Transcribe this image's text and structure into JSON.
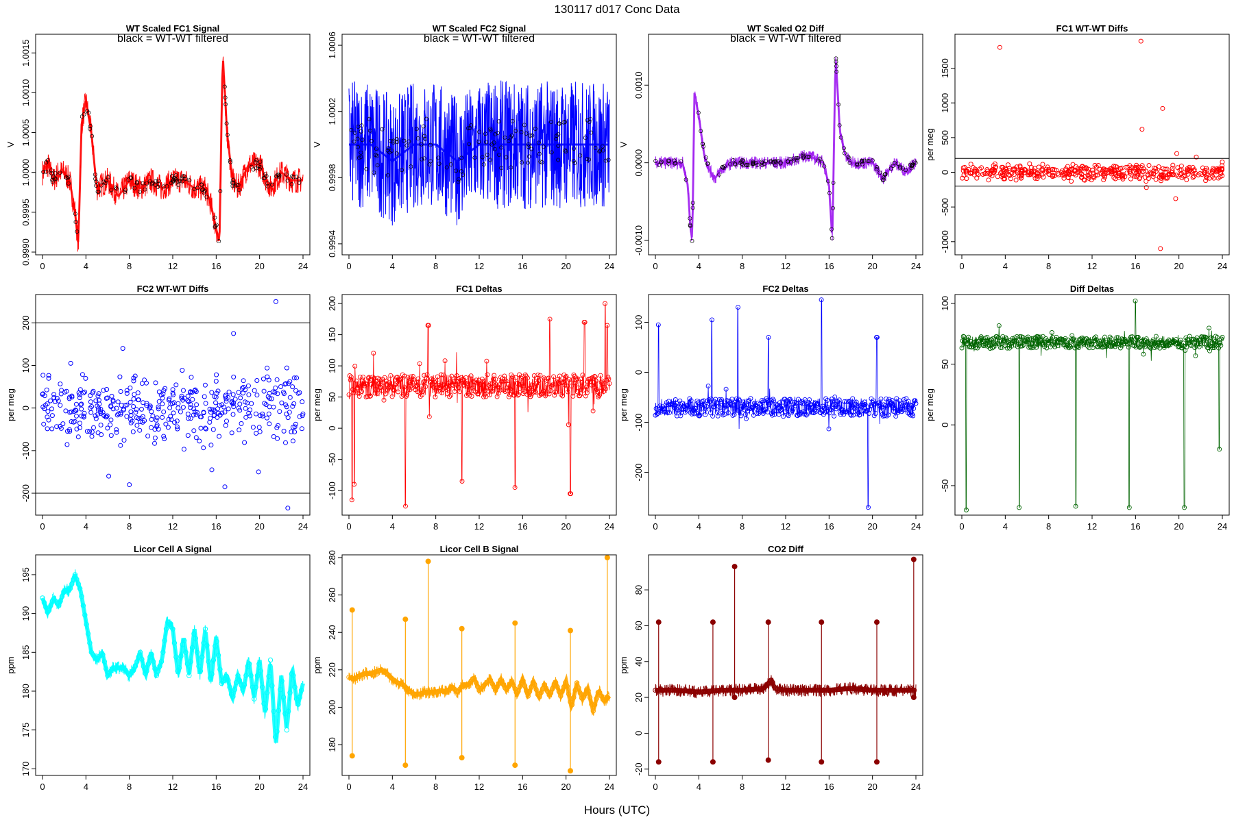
{
  "figure": {
    "title": "130117   d017   Conc Data",
    "xlabel": "Hours (UTC)",
    "x_ticks": [
      0,
      4,
      8,
      12,
      16,
      20,
      24
    ]
  },
  "colors": {
    "frame": "#000000",
    "background": "#ffffff",
    "red": "#ff0000",
    "blue": "#0000ff",
    "purple": "#a020f0",
    "green": "#006400",
    "cyan": "#00ffff",
    "orange": "#ffa500",
    "darkred": "#8b0000",
    "filtered": "#000000"
  },
  "chart_data": [
    {
      "type": "line",
      "title": "WT Scaled FC1 Signal",
      "annotation": "black = WT-WT filtered",
      "ylabel": "V",
      "xlim": [
        0,
        24
      ],
      "ylim": [
        0.999,
        1.0017
      ],
      "y_ticks": [
        "0.9990",
        "0.9995",
        "1.0000",
        "1.0005",
        "1.0010",
        "1.0015"
      ],
      "color": "red",
      "style": "band",
      "overlay_color": "filtered",
      "series": [
        {
          "x": [
            0,
            0.5,
            1,
            1.5,
            2,
            2.5,
            3,
            3.3,
            3.6,
            4,
            4.5,
            5,
            6,
            7,
            8,
            9,
            10,
            11,
            12,
            13,
            14,
            15,
            15.5,
            16,
            16.3,
            16.6,
            17,
            17.5,
            18,
            19,
            20,
            21,
            22,
            23,
            24
          ],
          "y": [
            1.0,
            1.0001,
            0.9999,
            1.0,
            1.0,
            0.9999,
            0.9995,
            0.9991,
            1.0006,
            1.0009,
            1.0005,
            0.9998,
            0.9999,
            0.9997,
            0.9999,
            0.9998,
            0.9999,
            0.9998,
            0.9999,
            0.9999,
            0.9998,
            0.9998,
            0.9996,
            0.9993,
            0.9991,
            1.0015,
            1.0005,
            0.9999,
            0.9998,
            1.0001,
            1.0001,
            0.9998,
            1.0,
            0.9999,
            0.9999
          ]
        }
      ]
    },
    {
      "type": "line",
      "title": "WT Scaled FC2 Signal",
      "annotation": "black = WT-WT filtered",
      "ylabel": "V",
      "xlim": [
        0,
        24
      ],
      "ylim": [
        0.99935,
        1.00065
      ],
      "y_ticks": [
        "0.9994",
        "0.9998",
        "1.0002",
        "1.0006"
      ],
      "color": "blue",
      "style": "band",
      "overlay_color": "filtered",
      "series": [
        {
          "x": [
            0,
            2,
            4,
            6,
            8,
            10,
            12,
            14,
            16,
            18,
            20,
            22,
            24
          ],
          "y": [
            1.0,
            1.0,
            0.9999,
            1.0,
            1.0,
            0.9999,
            1.0,
            1.0,
            1.0,
            1.0,
            1.0,
            1.0,
            1.0
          ]
        }
      ]
    },
    {
      "type": "line",
      "title": "WT Scaled O2 Diff",
      "annotation": "black = WT-WT filtered",
      "ylabel": "V",
      "xlim": [
        0,
        24
      ],
      "ylim": [
        -0.00115,
        0.00162
      ],
      "y_ticks": [
        "-0.0010",
        "0.0000",
        "0.0010"
      ],
      "color": "purple",
      "style": "band",
      "overlay_color": "filtered",
      "series": [
        {
          "x": [
            0,
            0.5,
            1,
            1.5,
            2,
            2.5,
            3,
            3.2,
            3.4,
            3.6,
            4,
            4.5,
            5,
            5.5,
            6,
            7,
            8,
            10,
            12,
            14,
            15.5,
            16,
            16.3,
            16.6,
            17,
            17.5,
            18,
            19,
            20,
            21,
            22,
            23,
            24
          ],
          "y": [
            0.0,
            0.0,
            0.0,
            0.0,
            0.0,
            0.0,
            -0.0003,
            -0.0008,
            -0.001,
            0.0009,
            0.0006,
            0.0001,
            -0.0001,
            -0.0002,
            -0.0001,
            0.0,
            0.0,
            0.0,
            0.0,
            0.0001,
            0.0,
            -0.0003,
            -0.001,
            0.0014,
            0.0004,
            0.0001,
            0.0,
            0.0,
            0.0,
            -0.0002,
            0.0,
            -0.0001,
            0.0
          ]
        }
      ]
    },
    {
      "type": "scatter",
      "title": "FC1 WT-WT Diffs",
      "ylabel": "per meg",
      "xlim": [
        0,
        24
      ],
      "ylim": [
        -1150,
        1950
      ],
      "y_ticks": [
        "-1000",
        "-500",
        "0",
        "500",
        "1000",
        "1500"
      ],
      "hlines": [
        200,
        -200
      ],
      "color": "red",
      "style": "scatter",
      "series": [
        {
          "x": [
            3.5,
            16.5,
            16.6,
            18.3,
            18.5,
            19.8,
            19.7,
            21.6,
            17.0,
            14.0
          ],
          "y": [
            1800,
            1890,
            620,
            -1100,
            920,
            270,
            -380,
            220,
            -220,
            90
          ]
        }
      ]
    },
    {
      "type": "scatter",
      "title": "FC2 WT-WT Diffs",
      "ylabel": "per meg",
      "xlim": [
        0,
        24
      ],
      "ylim": [
        -245,
        260
      ],
      "y_ticks": [
        "-200",
        "-100",
        "0",
        "100",
        "200"
      ],
      "hlines": [
        200,
        -200
      ],
      "color": "blue",
      "style": "scatter",
      "series": [
        {
          "x": [
            21.5,
            22.6,
            17.6,
            19.9,
            7.4,
            2.6,
            6.1,
            8.0,
            16.8,
            15.6
          ],
          "y": [
            250,
            -235,
            175,
            -150,
            140,
            105,
            -160,
            -180,
            -185,
            -145
          ]
        }
      ]
    },
    {
      "type": "line",
      "title": "FC1 Deltas",
      "ylabel": "per meg",
      "xlim": [
        0,
        24
      ],
      "ylim": [
        -135,
        210
      ],
      "y_ticks": [
        "-100",
        "-50",
        "0",
        "50",
        "100",
        "150",
        "200"
      ],
      "color": "red",
      "style": "linepoints",
      "series": [
        {
          "x": [
            0.3,
            0.5,
            5.2,
            10.4,
            15.3,
            20.4,
            23.6,
            23.8,
            7.3,
            18.5,
            21.7
          ],
          "y": [
            -115,
            -90,
            -125,
            -85,
            -95,
            -105,
            200,
            165,
            165,
            175,
            170
          ]
        }
      ]
    },
    {
      "type": "line",
      "title": "FC2 Deltas",
      "ylabel": "per meg",
      "xlim": [
        0,
        24
      ],
      "ylim": [
        -280,
        150
      ],
      "y_ticks": [
        "-200",
        "-100",
        "0",
        "100"
      ],
      "color": "blue",
      "style": "linepoints",
      "series": [
        {
          "x": [
            0.3,
            5.2,
            7.6,
            10.4,
            15.3,
            19.6,
            20.4
          ],
          "y": [
            95,
            105,
            130,
            70,
            145,
            -270,
            70
          ]
        }
      ]
    },
    {
      "type": "line",
      "title": "Diff Deltas",
      "ylabel": "per meg",
      "xlim": [
        0,
        24
      ],
      "ylim": [
        -72,
        105
      ],
      "y_ticks": [
        "-50",
        "0",
        "50",
        "100"
      ],
      "color": "green",
      "style": "linepoints",
      "series": [
        {
          "x": [
            0.4,
            5.3,
            10.5,
            15.4,
            20.5,
            16.0,
            23.7
          ],
          "y": [
            -70,
            -68,
            -67,
            -68,
            -68,
            102,
            -20
          ]
        }
      ]
    },
    {
      "type": "line",
      "title": "Licor Cell A Signal",
      "ylabel": "ppm",
      "xlim": [
        0,
        24
      ],
      "ylim": [
        169.5,
        197.2
      ],
      "y_ticks": [
        "170",
        "175",
        "180",
        "185",
        "190",
        "195"
      ],
      "color": "cyan",
      "style": "band",
      "series": [
        {
          "x": [
            0,
            0.5,
            1,
            1.5,
            2,
            2.5,
            3,
            3.5,
            4,
            4.5,
            5,
            5.5,
            6,
            6.5,
            7,
            7.5,
            8,
            8.5,
            9,
            9.5,
            10,
            10.5,
            11,
            11.5,
            12,
            12.5,
            13,
            13.5,
            14,
            14.5,
            15,
            15.5,
            16,
            16.5,
            17,
            17.5,
            18,
            18.5,
            19,
            19.5,
            20,
            20.5,
            21,
            21.5,
            22,
            22.5,
            23,
            23.5,
            24
          ],
          "y": [
            192,
            190,
            192,
            191,
            193,
            193,
            195,
            193,
            189,
            185,
            184,
            185,
            182,
            183,
            183,
            183,
            182,
            183,
            185,
            182,
            185,
            182,
            184,
            189,
            188,
            182,
            187,
            182,
            188,
            182,
            188,
            181,
            187,
            181,
            182,
            179,
            182,
            180,
            184,
            179,
            184,
            177,
            184,
            173,
            182,
            175,
            183,
            178,
            181
          ]
        }
      ]
    },
    {
      "type": "line",
      "title": "Licor Cell B Signal",
      "ylabel": "ppm",
      "xlim": [
        0,
        24
      ],
      "ylim": [
        165,
        280
      ],
      "y_ticks": [
        "180",
        "200",
        "220",
        "240",
        "260",
        "280"
      ],
      "color": "orange",
      "style": "band",
      "series": [
        {
          "x": [
            0,
            0.5,
            1,
            1.5,
            2,
            2.5,
            3,
            3.5,
            4,
            4.5,
            5,
            5.5,
            6,
            6.5,
            7,
            7.5,
            8,
            8.5,
            9,
            9.5,
            10,
            10.5,
            11,
            11.5,
            12,
            12.5,
            13,
            13.5,
            14,
            14.5,
            15,
            15.5,
            16,
            16.5,
            17,
            17.5,
            18,
            18.5,
            19,
            19.5,
            20,
            20.5,
            21,
            21.5,
            22,
            22.5,
            23,
            23.5,
            24
          ],
          "y": [
            216,
            215,
            217,
            218,
            218,
            219,
            220,
            218,
            215,
            213,
            212,
            209,
            207,
            207,
            208,
            208,
            208,
            209,
            208,
            211,
            208,
            212,
            212,
            216,
            209,
            212,
            215,
            209,
            215,
            209,
            214,
            207,
            215,
            206,
            214,
            205,
            212,
            206,
            214,
            206,
            214,
            200,
            213,
            204,
            210,
            198,
            209,
            203,
            206
          ]
        }
      ],
      "spikes": [
        {
          "x": 0.3,
          "y": [
            174,
            252
          ]
        },
        {
          "x": 5.2,
          "y": [
            169,
            247
          ]
        },
        {
          "x": 7.3,
          "y": [
            208,
            278
          ]
        },
        {
          "x": 10.4,
          "y": [
            173,
            242
          ]
        },
        {
          "x": 15.3,
          "y": [
            169,
            245
          ]
        },
        {
          "x": 20.4,
          "y": [
            166,
            241
          ]
        },
        {
          "x": 23.8,
          "y": [
            205,
            280
          ]
        }
      ]
    },
    {
      "type": "line",
      "title": "CO2 Diff",
      "ylabel": "ppm",
      "xlim": [
        0,
        24
      ],
      "ylim": [
        -22,
        98
      ],
      "y_ticks": [
        "-20",
        "0",
        "20",
        "40",
        "60",
        "80"
      ],
      "color": "darkred",
      "style": "band",
      "series": [
        {
          "x": [
            0,
            2,
            4,
            6,
            8,
            10,
            10.7,
            11,
            12,
            14,
            16,
            18,
            20,
            22,
            24
          ],
          "y": [
            24,
            24,
            23,
            24,
            24,
            25,
            30,
            25,
            24,
            24,
            24,
            25,
            24,
            24,
            24
          ]
        }
      ],
      "spikes": [
        {
          "x": 0.3,
          "y": [
            -16,
            62
          ]
        },
        {
          "x": 5.3,
          "y": [
            -16,
            62
          ]
        },
        {
          "x": 7.3,
          "y": [
            20,
            93
          ]
        },
        {
          "x": 10.4,
          "y": [
            -15,
            62
          ]
        },
        {
          "x": 15.3,
          "y": [
            -16,
            62
          ]
        },
        {
          "x": 20.4,
          "y": [
            -16,
            62
          ]
        },
        {
          "x": 23.8,
          "y": [
            20,
            97
          ]
        }
      ]
    }
  ]
}
